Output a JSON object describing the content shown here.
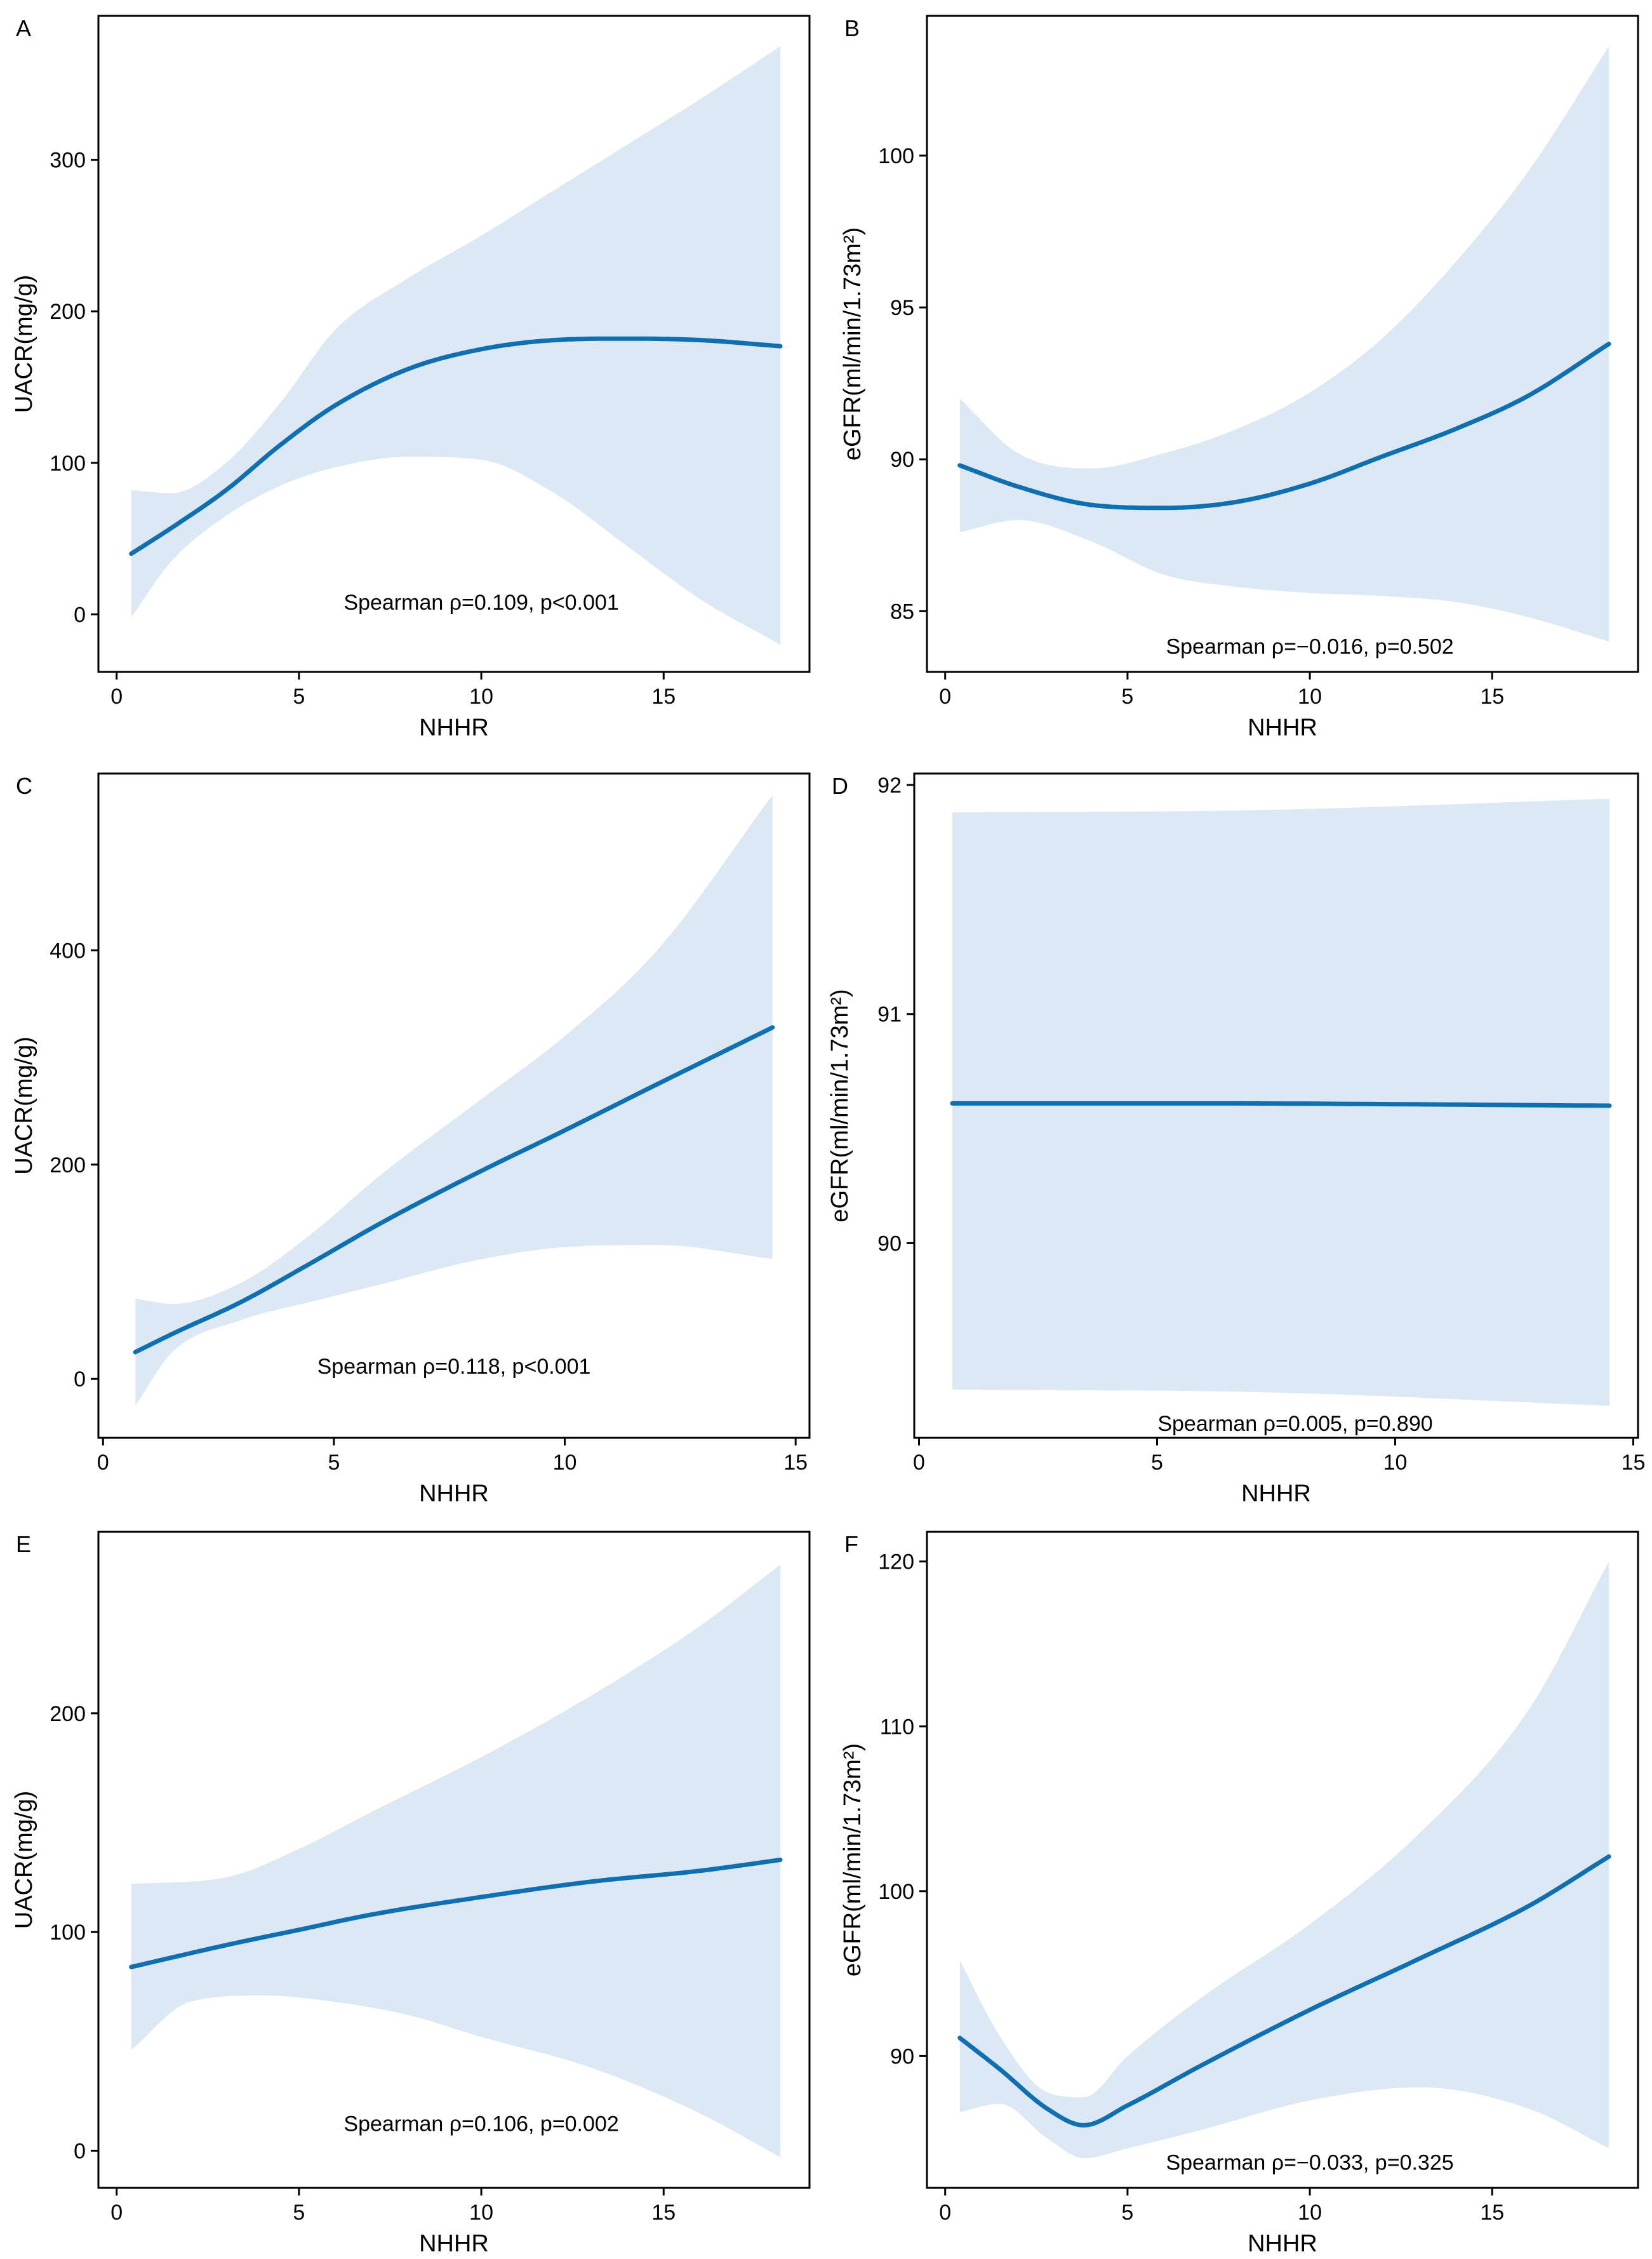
{
  "colors": {
    "curve": "#0F6FB0",
    "band": "#DCE9F5",
    "frame": "#000000",
    "background": "#FFFFFF"
  },
  "chart_data": [
    {
      "type": "line",
      "panel": "A",
      "xlabel": "NHHR",
      "ylabel": "UACR(mg/g)",
      "xlim": [
        -0.5,
        19.0
      ],
      "ylim": [
        -38,
        395
      ],
      "xticks": [
        0,
        5,
        10,
        15
      ],
      "yticks": [
        0,
        100,
        200,
        300
      ],
      "annotation": "Spearman ρ=0.109, p<0.001",
      "annotation_pos": [
        10.0,
        3
      ],
      "series": [
        {
          "name": "fit",
          "x": [
            0.4,
            1.5,
            3,
            4.5,
            6,
            8,
            10,
            12,
            14,
            16,
            18.2
          ],
          "y": [
            40,
            57,
            82,
            112,
            138,
            162,
            175,
            181,
            182,
            181,
            177
          ]
        },
        {
          "name": "ci_upper",
          "x": [
            0.4,
            1.5,
            3,
            4.5,
            6,
            8,
            10,
            12,
            14,
            16,
            18.2
          ],
          "y": [
            82,
            80,
            100,
            140,
            188,
            222,
            250,
            280,
            310,
            340,
            375
          ]
        },
        {
          "name": "ci_lower",
          "x": [
            0.4,
            1.5,
            3,
            4.5,
            6,
            8,
            10,
            12,
            14,
            16,
            18.2
          ],
          "y": [
            -2,
            35,
            65,
            85,
            97,
            104,
            102,
            80,
            45,
            10,
            -20
          ]
        }
      ]
    },
    {
      "type": "line",
      "panel": "B",
      "xlabel": "NHHR",
      "ylabel": "eGFR(ml/min/1.73m²)",
      "xlim": [
        -0.5,
        19.0
      ],
      "ylim": [
        83.0,
        104.6
      ],
      "xticks": [
        0,
        5,
        10,
        15
      ],
      "yticks": [
        85,
        90,
        95,
        100
      ],
      "annotation": "Spearman ρ=−0.016, p=0.502",
      "annotation_pos": [
        10.0,
        83.6
      ],
      "series": [
        {
          "name": "fit",
          "x": [
            0.4,
            2,
            4,
            6,
            8,
            10,
            12,
            14,
            16,
            18.2
          ],
          "y": [
            89.8,
            89.1,
            88.5,
            88.4,
            88.6,
            89.2,
            90.1,
            91.0,
            92.1,
            93.8
          ]
        },
        {
          "name": "ci_upper",
          "x": [
            0.4,
            2,
            4,
            6,
            8,
            10,
            12,
            14,
            16,
            18.2
          ],
          "y": [
            92.0,
            90.2,
            89.7,
            90.2,
            91.0,
            92.2,
            94.0,
            96.5,
            99.5,
            103.6
          ]
        },
        {
          "name": "ci_lower",
          "x": [
            0.4,
            2,
            4,
            6,
            8,
            10,
            12,
            14,
            16,
            18.2
          ],
          "y": [
            87.6,
            88.0,
            87.3,
            86.2,
            85.8,
            85.6,
            85.5,
            85.3,
            84.8,
            84.0
          ]
        }
      ]
    },
    {
      "type": "line",
      "panel": "C",
      "xlabel": "NHHR",
      "ylabel": "UACR(mg/g)",
      "xlim": [
        -0.1,
        15.3
      ],
      "ylim": [
        -55,
        565
      ],
      "xticks": [
        0,
        5,
        10,
        15
      ],
      "yticks": [
        0,
        200,
        400
      ],
      "annotation": "Spearman ρ=0.118, p<0.001",
      "annotation_pos": [
        7.6,
        5
      ],
      "series": [
        {
          "name": "fit",
          "x": [
            0.7,
            1.5,
            3,
            4.5,
            6,
            8,
            10,
            12,
            14.5
          ],
          "y": [
            25,
            42,
            72,
            108,
            145,
            190,
            232,
            275,
            328
          ]
        },
        {
          "name": "ci_upper",
          "x": [
            0.7,
            1.5,
            3,
            4.5,
            6,
            8,
            10,
            12,
            14.5
          ],
          "y": [
            75,
            70,
            90,
            135,
            190,
            255,
            320,
            400,
            545
          ]
        },
        {
          "name": "ci_lower",
          "x": [
            0.7,
            1.5,
            3,
            4.5,
            6,
            8,
            10,
            12,
            14.5
          ],
          "y": [
            -25,
            25,
            55,
            72,
            88,
            110,
            123,
            125,
            112
          ]
        }
      ]
    },
    {
      "type": "line",
      "panel": "D",
      "xlabel": "NHHR",
      "ylabel": "eGFR(ml/min/1.73m²)",
      "xlim": [
        -0.1,
        15.1
      ],
      "ylim": [
        89.15,
        92.05
      ],
      "xticks": [
        0,
        5,
        10,
        15
      ],
      "yticks": [
        90,
        91,
        92
      ],
      "annotation": "Spearman ρ=0.005, p=0.890",
      "annotation_pos": [
        7.9,
        89.18
      ],
      "series": [
        {
          "name": "fit",
          "x": [
            0.7,
            6,
            14.5
          ],
          "y": [
            90.61,
            90.61,
            90.6
          ]
        },
        {
          "name": "ci_upper",
          "x": [
            0.7,
            7,
            14.5
          ],
          "y": [
            91.88,
            91.89,
            91.94
          ]
        },
        {
          "name": "ci_lower",
          "x": [
            0.7,
            7,
            14.5
          ],
          "y": [
            89.36,
            89.35,
            89.29
          ]
        }
      ]
    },
    {
      "type": "line",
      "panel": "E",
      "xlabel": "NHHR",
      "ylabel": "UACR(mg/g)",
      "xlim": [
        -0.5,
        19.0
      ],
      "ylim": [
        -17,
        283
      ],
      "xticks": [
        0,
        5,
        10,
        15
      ],
      "yticks": [
        0,
        100,
        200
      ],
      "annotation": "Spearman ρ=0.106, p=0.002",
      "annotation_pos": [
        10.0,
        9
      ],
      "series": [
        {
          "name": "fit",
          "x": [
            0.4,
            3,
            5,
            7,
            10,
            13,
            16,
            18.2
          ],
          "y": [
            84,
            94,
            101,
            108,
            116,
            123,
            128,
            133
          ]
        },
        {
          "name": "ci_upper",
          "x": [
            0.4,
            3,
            5,
            7,
            10,
            13,
            16,
            18.2
          ],
          "y": [
            122,
            125,
            138,
            155,
            180,
            208,
            240,
            268
          ]
        },
        {
          "name": "ci_lower",
          "x": [
            0.4,
            2,
            4,
            6,
            8,
            10,
            13,
            16,
            18.2
          ],
          "y": [
            46,
            68,
            71,
            68,
            62,
            52,
            38,
            17,
            -3
          ]
        }
      ]
    },
    {
      "type": "line",
      "panel": "F",
      "xlabel": "NHHR",
      "ylabel": "eGFR(ml/min/1.73m²)",
      "xlim": [
        -0.5,
        19.0
      ],
      "ylim": [
        82.0,
        121.8
      ],
      "xticks": [
        0,
        5,
        10,
        15
      ],
      "yticks": [
        90,
        100,
        110,
        120
      ],
      "annotation": "Spearman ρ=−0.033, p=0.325",
      "annotation_pos": [
        10.0,
        83.1
      ],
      "series": [
        {
          "name": "fit",
          "x": [
            0.4,
            1.5,
            2.8,
            3.8,
            5,
            7,
            10,
            13,
            16,
            18.2
          ],
          "y": [
            91.1,
            89.2,
            86.8,
            85.8,
            87.0,
            89.4,
            92.8,
            95.9,
            99.1,
            102.1
          ]
        },
        {
          "name": "ci_upper",
          "x": [
            0.4,
            1.5,
            2.8,
            3.8,
            5,
            7,
            10,
            13,
            16,
            18.2
          ],
          "y": [
            95.8,
            91.2,
            87.8,
            87.5,
            90.0,
            93.5,
            98.0,
            103.5,
            111.0,
            120.0
          ]
        },
        {
          "name": "ci_lower",
          "x": [
            0.4,
            1.5,
            2.8,
            3.8,
            5,
            7,
            10,
            13,
            16,
            18.2
          ],
          "y": [
            86.6,
            87.1,
            85.0,
            83.8,
            84.4,
            85.5,
            87.3,
            88.1,
            86.8,
            84.4
          ]
        }
      ]
    }
  ]
}
